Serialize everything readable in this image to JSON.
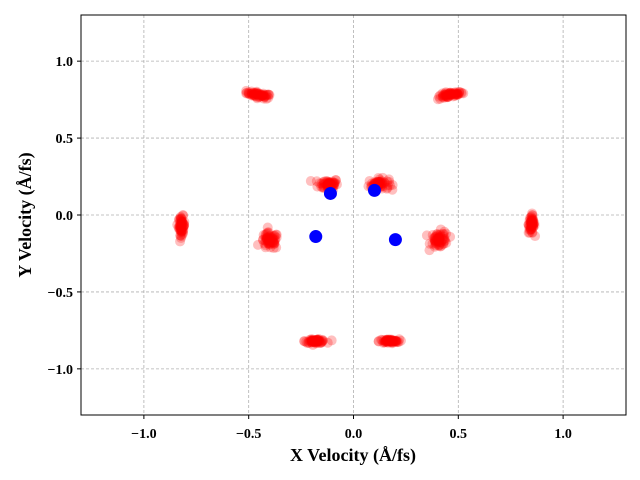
{
  "chart_data": {
    "type": "scatter",
    "xlabel": "X Velocity (Å/fs)",
    "ylabel": "Y Velocity (Å/fs)",
    "xlim": [
      -1.3,
      1.3
    ],
    "ylim": [
      -1.3,
      1.3
    ],
    "xticks": [
      "−1.0",
      "−0.5",
      "0.0",
      "0.5",
      "1.0"
    ],
    "xtick_values": [
      -1.0,
      -0.5,
      0.0,
      0.5,
      1.0
    ],
    "yticks": [
      "−1.0",
      "−0.5",
      "0.0",
      "0.5",
      "1.0"
    ],
    "ytick_values": [
      -1.0,
      -0.5,
      0.0,
      0.5,
      1.0
    ],
    "grid": true,
    "series": [
      {
        "color": "#ff0000",
        "clusters": [
          {
            "x": -0.45,
            "y": 0.78,
            "spread_x": 0.05,
            "spread_y": 0.015,
            "orient": -0.25
          },
          {
            "x": 0.46,
            "y": 0.78,
            "spread_x": 0.05,
            "spread_y": 0.015,
            "orient": 0.25
          },
          {
            "x": -0.12,
            "y": 0.2,
            "spread_x": 0.04,
            "spread_y": 0.03,
            "orient": 0
          },
          {
            "x": 0.12,
            "y": 0.2,
            "spread_x": 0.04,
            "spread_y": 0.03,
            "orient": 0
          },
          {
            "x": -0.82,
            "y": -0.07,
            "spread_x": 0.012,
            "spread_y": 0.05,
            "orient": 0
          },
          {
            "x": 0.85,
            "y": -0.06,
            "spread_x": 0.012,
            "spread_y": 0.05,
            "orient": 0
          },
          {
            "x": -0.4,
            "y": -0.17,
            "spread_x": 0.035,
            "spread_y": 0.045,
            "orient": 0
          },
          {
            "x": 0.41,
            "y": -0.16,
            "spread_x": 0.035,
            "spread_y": 0.045,
            "orient": 0
          },
          {
            "x": -0.18,
            "y": -0.82,
            "spread_x": 0.04,
            "spread_y": 0.01,
            "orient": 0
          },
          {
            "x": 0.17,
            "y": -0.82,
            "spread_x": 0.04,
            "spread_y": 0.01,
            "orient": 0
          }
        ]
      },
      {
        "color": "#0000ff",
        "points": [
          {
            "x": -0.11,
            "y": 0.14
          },
          {
            "x": 0.1,
            "y": 0.16
          },
          {
            "x": -0.18,
            "y": -0.14
          },
          {
            "x": 0.2,
            "y": -0.16
          }
        ]
      }
    ]
  }
}
